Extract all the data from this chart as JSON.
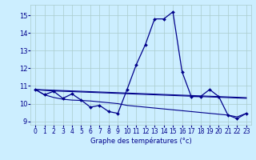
{
  "xlabel": "Graphe des températures (°c)",
  "xlim": [
    -0.5,
    23.5
  ],
  "ylim": [
    8.8,
    15.6
  ],
  "yticks": [
    9,
    10,
    11,
    12,
    13,
    14,
    15
  ],
  "xticks": [
    0,
    1,
    2,
    3,
    4,
    5,
    6,
    7,
    8,
    9,
    10,
    11,
    12,
    13,
    14,
    15,
    16,
    17,
    18,
    19,
    20,
    21,
    22,
    23
  ],
  "bg_color": "#cceeff",
  "grid_color": "#aacccc",
  "line_color": "#00008b",
  "line1": {
    "x": [
      0,
      1,
      2,
      3,
      4,
      5,
      6,
      7,
      8,
      9,
      10,
      11,
      12,
      13,
      14,
      15,
      16,
      17,
      18,
      19,
      20,
      21,
      22,
      23
    ],
    "y": [
      10.8,
      10.5,
      10.7,
      10.3,
      10.55,
      10.2,
      9.8,
      9.9,
      9.55,
      9.45,
      10.8,
      12.2,
      13.35,
      14.8,
      14.8,
      15.2,
      11.8,
      10.4,
      10.4,
      10.8,
      10.4,
      9.35,
      9.15,
      9.45
    ]
  },
  "line2": {
    "x": [
      0,
      1,
      2,
      3,
      4,
      5,
      6,
      7,
      8,
      9,
      10,
      11,
      12,
      13,
      14,
      15,
      16,
      17,
      18,
      19,
      20,
      21,
      22,
      23
    ],
    "y": [
      10.8,
      10.75,
      10.72,
      10.7,
      10.68,
      10.66,
      10.64,
      10.62,
      10.6,
      10.58,
      10.56,
      10.54,
      10.52,
      10.5,
      10.48,
      10.46,
      10.44,
      10.42,
      10.4,
      10.38,
      10.36,
      10.34,
      10.32,
      10.3
    ]
  },
  "line3": {
    "x": [
      0,
      1,
      2,
      3,
      4,
      5,
      6,
      7,
      8,
      9,
      10,
      11,
      12,
      13,
      14,
      15,
      16,
      17,
      18,
      19,
      20,
      21,
      22,
      23
    ],
    "y": [
      10.8,
      10.5,
      10.35,
      10.25,
      10.2,
      10.18,
      10.15,
      10.1,
      10.05,
      10.0,
      9.9,
      9.85,
      9.8,
      9.75,
      9.7,
      9.65,
      9.6,
      9.55,
      9.5,
      9.45,
      9.4,
      9.35,
      9.25,
      9.45
    ]
  },
  "line4": {
    "x": [
      0,
      1,
      2,
      3,
      4,
      5,
      6,
      7,
      8,
      9,
      10,
      11,
      12,
      13,
      14,
      15,
      16,
      17,
      18,
      19,
      20,
      21,
      22,
      23
    ],
    "y": [
      10.8,
      10.78,
      10.76,
      10.74,
      10.72,
      10.7,
      10.68,
      10.66,
      10.64,
      10.62,
      10.6,
      10.58,
      10.56,
      10.54,
      10.52,
      10.5,
      10.48,
      10.46,
      10.44,
      10.42,
      10.4,
      10.38,
      10.36,
      10.34
    ]
  }
}
